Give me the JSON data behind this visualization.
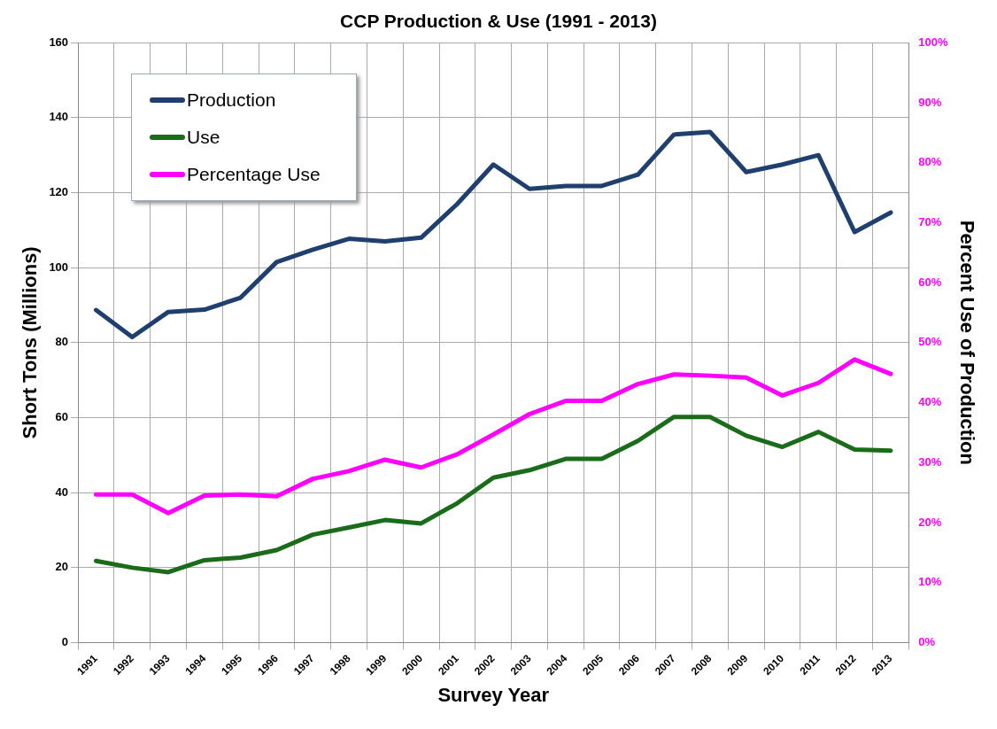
{
  "chart_data": {
    "type": "line",
    "title": "CCP Production & Use (1991 - 2013)",
    "xlabel": "Survey Year",
    "ylabel": "Short Tons (Millions)",
    "y2label": "Percent Use of Production",
    "categories": [
      "1991",
      "1992",
      "1993",
      "1994",
      "1995",
      "1996",
      "1997",
      "1998",
      "1999",
      "2000",
      "2001",
      "2002",
      "2003",
      "2004",
      "2005",
      "2006",
      "2007",
      "2008",
      "2009",
      "2010",
      "2011",
      "2012",
      "2013"
    ],
    "series": [
      {
        "name": "Production",
        "color": "#1f3f6e",
        "values": [
          88.7,
          81.5,
          88.2,
          88.8,
          92,
          101.5,
          104.8,
          107.7,
          107,
          108,
          117,
          127.5,
          121,
          121.8,
          121.8,
          124.8,
          135.5,
          136.2,
          125.5,
          127.5,
          130,
          109.5,
          114.7
        ]
      },
      {
        "name": "Use",
        "color": "#1a6b1a",
        "values": [
          21.8,
          20,
          18.8,
          22,
          22.7,
          24.7,
          28.8,
          30.7,
          32.7,
          31.8,
          37.2,
          44,
          46,
          49,
          49,
          53.8,
          60.2,
          60.2,
          55.2,
          52.2,
          56.2,
          51.5,
          51.2
        ]
      },
      {
        "name": "Percentage Use",
        "color": "#ff00ff",
        "axis": "y2",
        "values": [
          24.7,
          24.7,
          21.6,
          24.5,
          24.7,
          24.4,
          27.3,
          28.6,
          30.5,
          29.2,
          31.4,
          34.7,
          38.1,
          40.3,
          40.3,
          43.1,
          44.7,
          44.5,
          44.2,
          41.2,
          43.3,
          47.2,
          44.8
        ]
      }
    ],
    "ylim": [
      0,
      160
    ],
    "yticks": [
      0,
      20,
      40,
      60,
      80,
      100,
      120,
      140,
      160
    ],
    "y2lim": [
      0,
      100
    ],
    "y2ticks": [
      {
        "value": 0,
        "label": "0%"
      },
      {
        "value": 10,
        "label": "10%"
      },
      {
        "value": 20,
        "label": "20%"
      },
      {
        "value": 30,
        "label": "30%"
      },
      {
        "value": 40,
        "label": "40%"
      },
      {
        "value": 50,
        "label": "50%"
      },
      {
        "value": 60,
        "label": "60%"
      },
      {
        "value": 70,
        "label": "70%"
      },
      {
        "value": 80,
        "label": "80%"
      },
      {
        "value": 90,
        "label": "90%"
      },
      {
        "value": 100,
        "label": "100%"
      }
    ],
    "grid": true,
    "legend": "top left",
    "marker": "none",
    "line_style": "solid"
  }
}
